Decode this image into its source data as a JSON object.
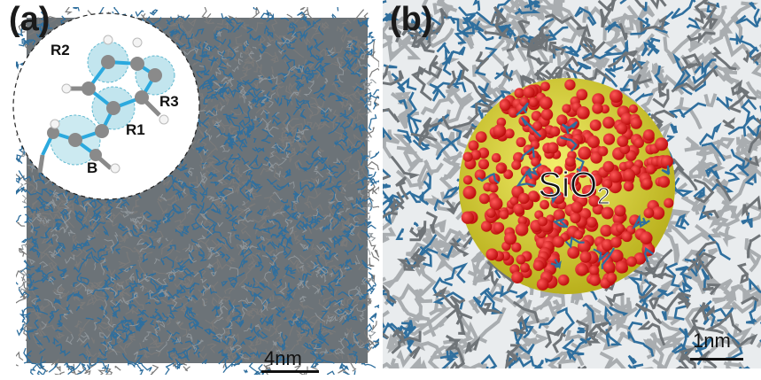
{
  "panels": [
    {
      "label": "(a)",
      "scale_bar_text": "4nm",
      "inset_labels": [
        "R2",
        "R3",
        "R1",
        "B"
      ]
    },
    {
      "label": "(b)",
      "scale_bar_text": "1nm",
      "particle_label": {
        "main": "SiO",
        "subscript": "2"
      }
    }
  ],
  "colors": {
    "bond_blue": "#2f6f9e",
    "bond_gray": "#7a7a7a",
    "oxygen_red": "#e01b1b",
    "silicon_yellow": "#e8e23a",
    "ring_highlight": "#8fd0e0"
  }
}
